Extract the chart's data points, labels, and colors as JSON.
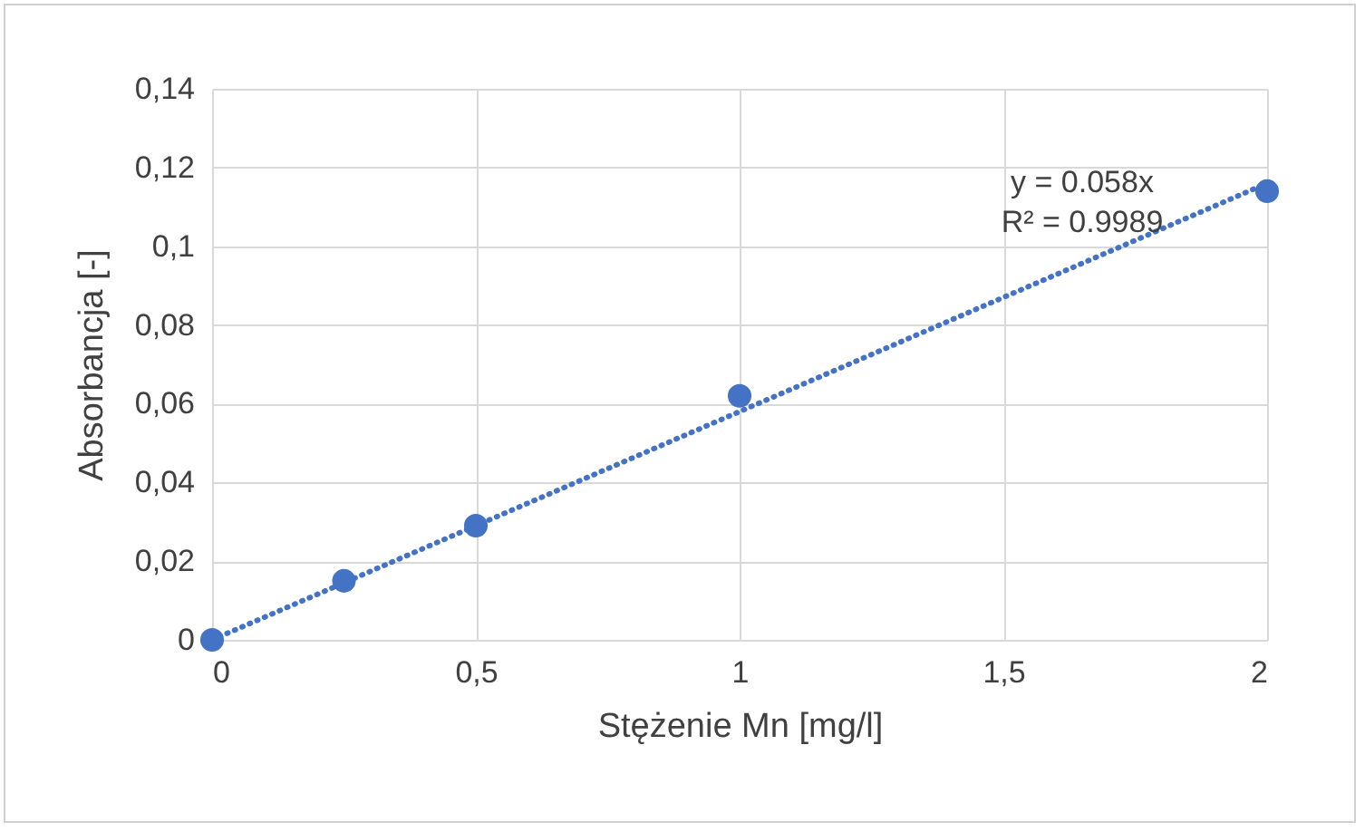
{
  "chart_data": {
    "type": "scatter",
    "xlabel": "Stężenie Mn [mg/l]",
    "ylabel": "Absorbancja [-]",
    "x": [
      0,
      0.25,
      0.5,
      1,
      2
    ],
    "series": [
      {
        "color": "#4472c4",
        "marker": "circle",
        "values": [
          0,
          0.015,
          0.029,
          0.062,
          0.114
        ]
      },
      {
        "type": "line",
        "color": "#4472c4",
        "marker": "none",
        "line_style": "dotted",
        "x": [
          0,
          2
        ],
        "values": [
          0,
          0.116
        ]
      }
    ],
    "xlim": [
      0,
      2
    ],
    "xticks": [
      0,
      {
        "value": 0.5,
        "label": "0,5"
      },
      1,
      {
        "value": 1.5,
        "label": "1,5"
      },
      2
    ],
    "ylim": [
      0,
      0.14
    ],
    "yticks": [
      0,
      {
        "value": 0.02,
        "label": "0,02"
      },
      {
        "value": 0.04,
        "label": "0,04"
      },
      {
        "value": 0.06,
        "label": "0,06"
      },
      {
        "value": 0.08,
        "label": "0,08"
      },
      {
        "value": 0.1,
        "label": "0,1"
      },
      {
        "value": 0.12,
        "label": "0,12"
      },
      {
        "value": 0.14,
        "label": "0,14"
      }
    ],
    "grid": true,
    "annotations": [
      "y = 0.058x",
      "R² = 0.9989"
    ]
  }
}
